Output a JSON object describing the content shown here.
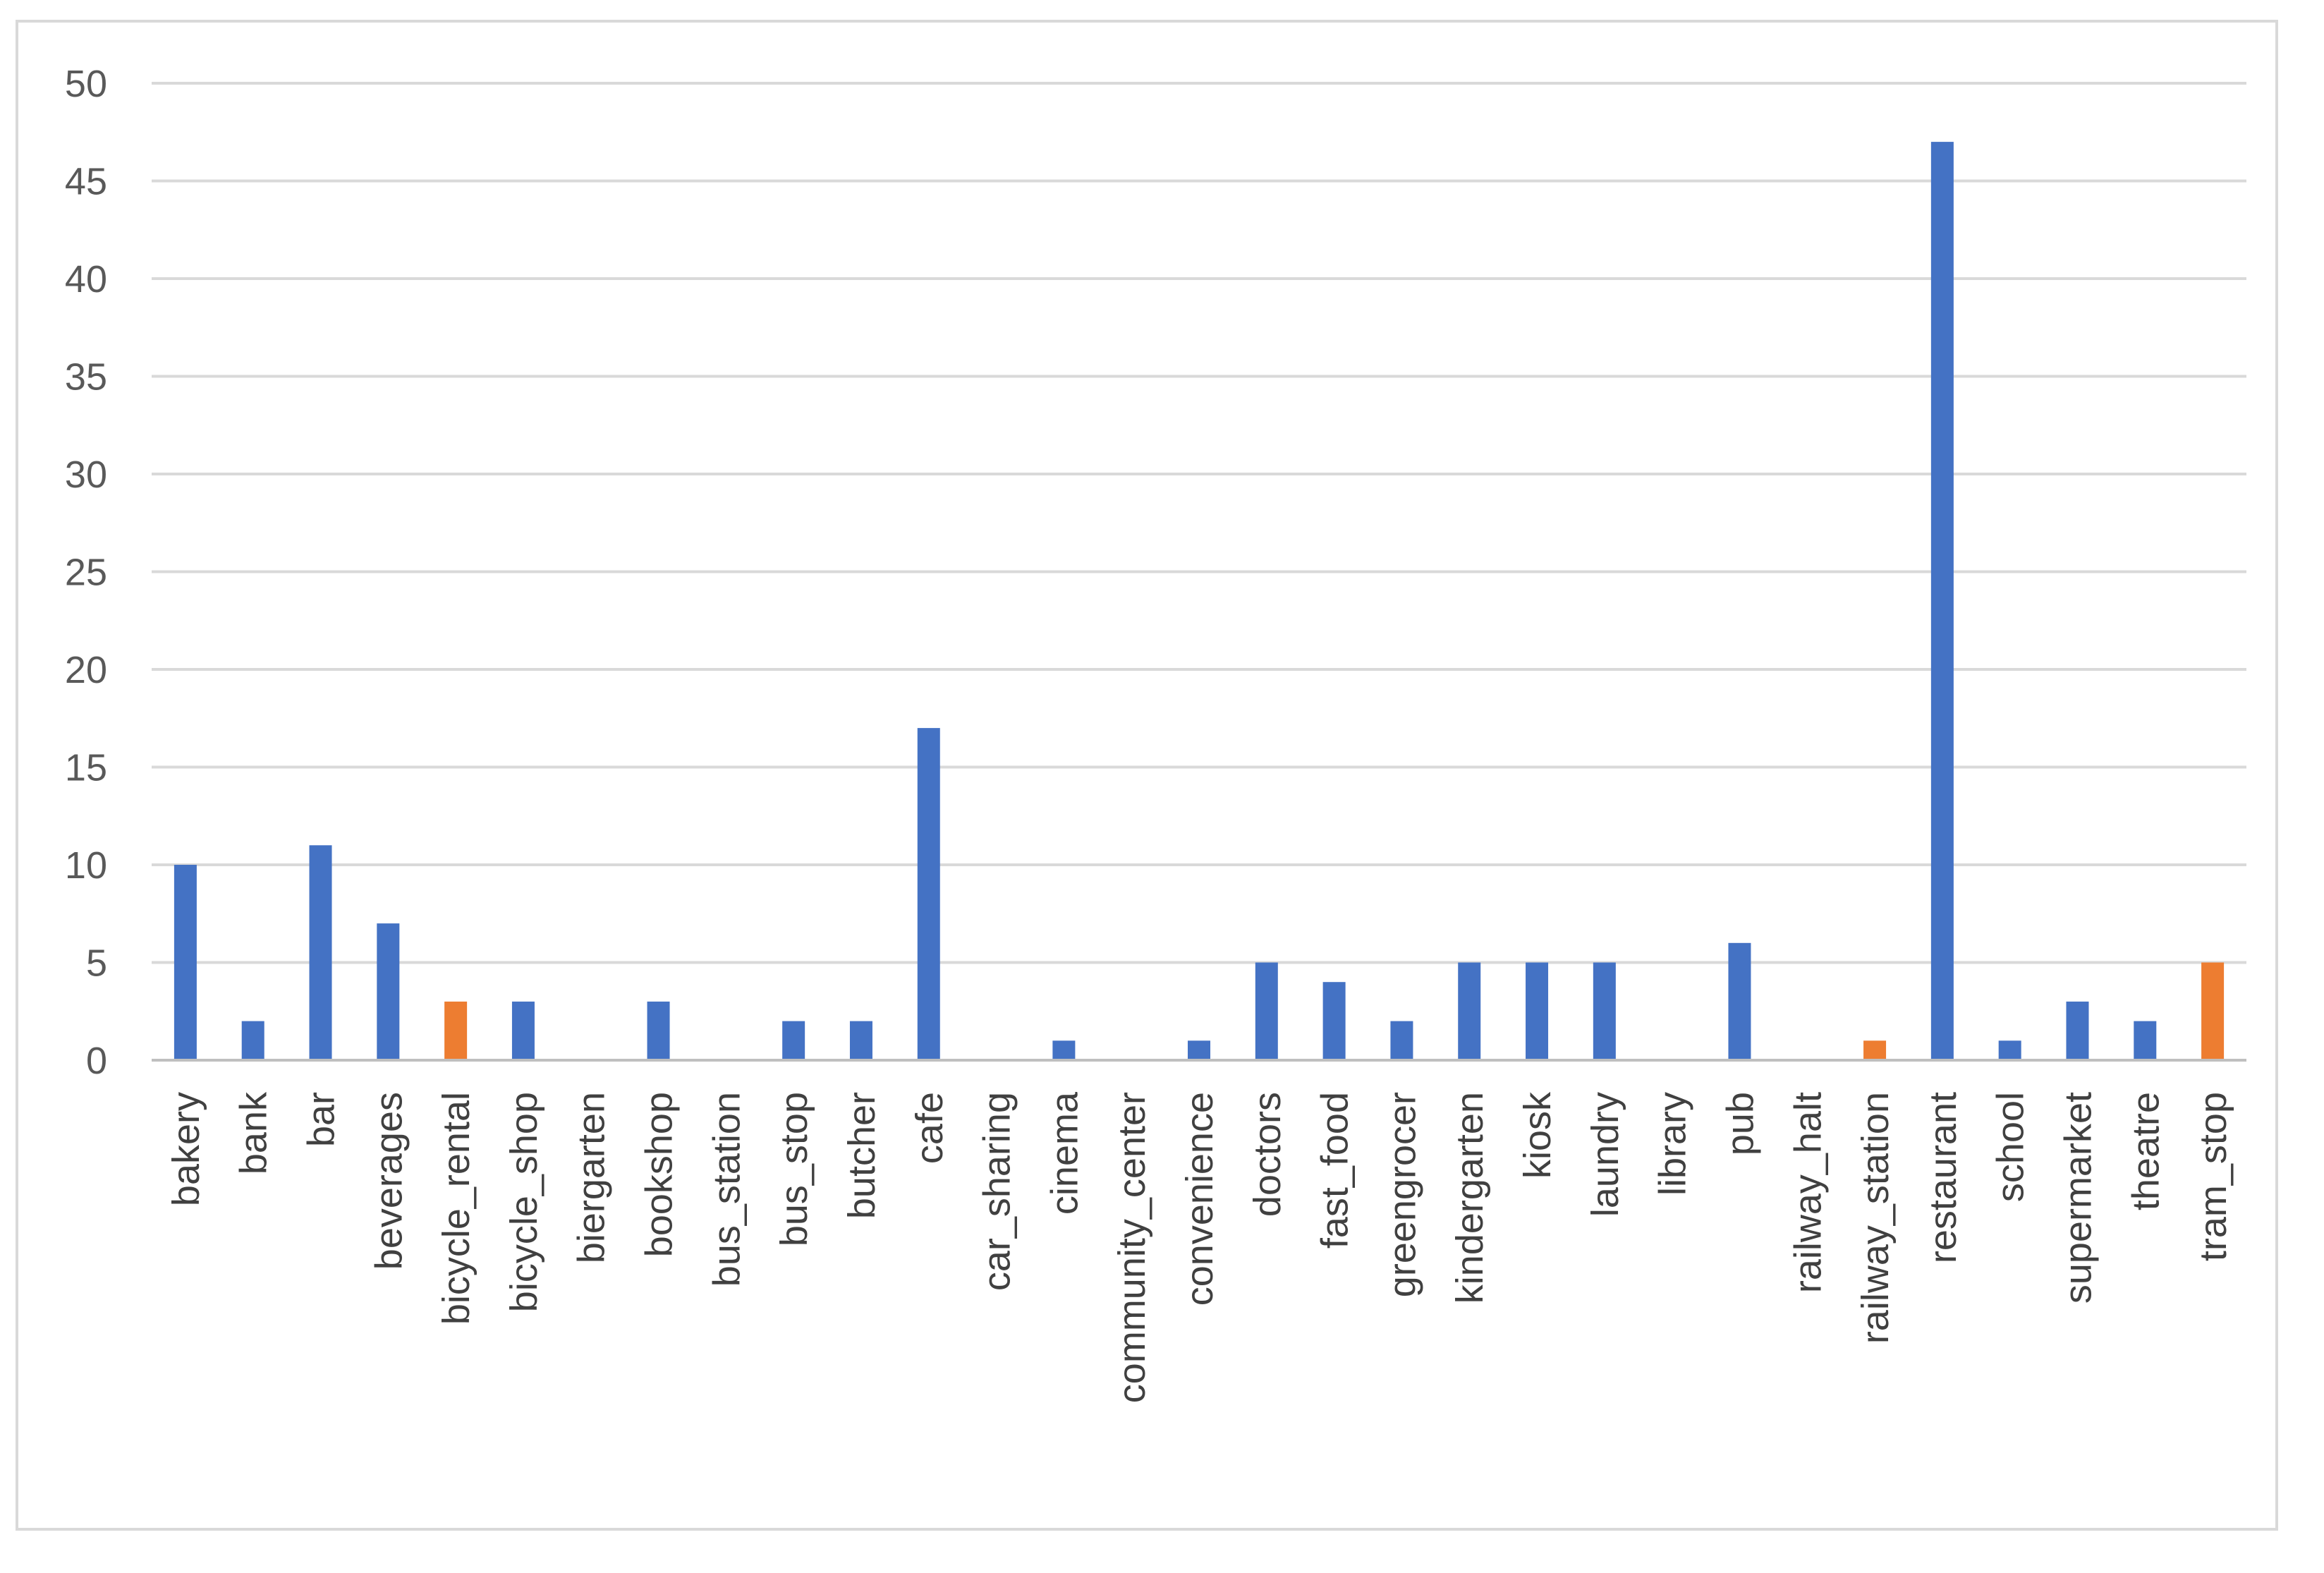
{
  "chart_data": {
    "type": "bar",
    "title": "",
    "xlabel": "",
    "ylabel": "",
    "ylim": [
      0,
      50
    ],
    "yticks": [
      0,
      5,
      10,
      15,
      20,
      25,
      30,
      35,
      40,
      45,
      50
    ],
    "grid": true,
    "legend": "none",
    "colors": {
      "blue": "#4472c4",
      "orange": "#ed7d31",
      "grid": "#d9d9d9",
      "axis": "#bfbfbf"
    },
    "categories": [
      "bakery",
      "bank",
      "bar",
      "beverages",
      "bicycle_rental",
      "bicycle_shop",
      "biergarten",
      "bookshop",
      "bus_station",
      "bus_stop",
      "butcher",
      "cafe",
      "car_sharing",
      "cinema",
      "community_center",
      "convenience",
      "doctors",
      "fast_food",
      "greengrocer",
      "kindergarten",
      "kiosk",
      "laundry",
      "library",
      "pub",
      "railway_halt",
      "railway_station",
      "restaurant",
      "school",
      "supermarket",
      "theatre",
      "tram_stop"
    ],
    "values": [
      10,
      2,
      11,
      7,
      3,
      3,
      0,
      3,
      0,
      2,
      2,
      17,
      0,
      1,
      0,
      1,
      5,
      4,
      2,
      5,
      5,
      5,
      0,
      6,
      0,
      1,
      47,
      1,
      3,
      2,
      5
    ],
    "bar_colors": [
      "blue",
      "blue",
      "blue",
      "blue",
      "orange",
      "blue",
      "blue",
      "blue",
      "blue",
      "blue",
      "blue",
      "blue",
      "blue",
      "blue",
      "blue",
      "blue",
      "blue",
      "blue",
      "blue",
      "blue",
      "blue",
      "blue",
      "blue",
      "blue",
      "blue",
      "orange",
      "blue",
      "blue",
      "blue",
      "blue",
      "orange"
    ]
  }
}
